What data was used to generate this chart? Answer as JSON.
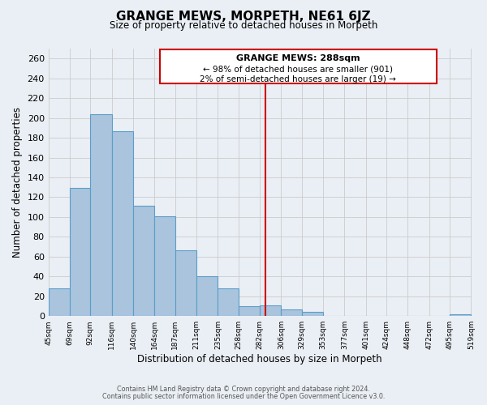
{
  "title": "GRANGE MEWS, MORPETH, NE61 6JZ",
  "subtitle": "Size of property relative to detached houses in Morpeth",
  "xlabel": "Distribution of detached houses by size in Morpeth",
  "ylabel": "Number of detached properties",
  "bar_edges": [
    45,
    69,
    92,
    116,
    140,
    164,
    187,
    211,
    235,
    258,
    282,
    306,
    329,
    353,
    377,
    401,
    424,
    448,
    472,
    495,
    519
  ],
  "bar_heights": [
    28,
    129,
    204,
    187,
    111,
    101,
    66,
    40,
    28,
    10,
    11,
    7,
    4,
    0,
    0,
    0,
    0,
    0,
    0,
    2
  ],
  "bar_color": "#aac4de",
  "bar_edge_color": "#5a9ec8",
  "bar_linewidth": 0.8,
  "vline_x": 288,
  "vline_color": "#cc0000",
  "annotation_text_title": "GRANGE MEWS: 288sqm",
  "annotation_line1": "← 98% of detached houses are smaller (901)",
  "annotation_line2": "2% of semi-detached houses are larger (19) →",
  "annotation_box_color": "#cc0000",
  "annotation_bg": "#ffffff",
  "ylim": [
    0,
    270
  ],
  "xlim": [
    45,
    519
  ],
  "grid_color": "#cccccc",
  "yticks": [
    0,
    20,
    40,
    60,
    80,
    100,
    120,
    140,
    160,
    180,
    200,
    220,
    240,
    260
  ],
  "tick_labels": [
    "45sqm",
    "69sqm",
    "92sqm",
    "116sqm",
    "140sqm",
    "164sqm",
    "187sqm",
    "211sqm",
    "235sqm",
    "258sqm",
    "282sqm",
    "306sqm",
    "329sqm",
    "353sqm",
    "377sqm",
    "401sqm",
    "424sqm",
    "448sqm",
    "472sqm",
    "495sqm",
    "519sqm"
  ],
  "footer_line1": "Contains HM Land Registry data © Crown copyright and database right 2024.",
  "footer_line2": "Contains public sector information licensed under the Open Government Licence v3.0.",
  "bg_color": "#eaeff5"
}
